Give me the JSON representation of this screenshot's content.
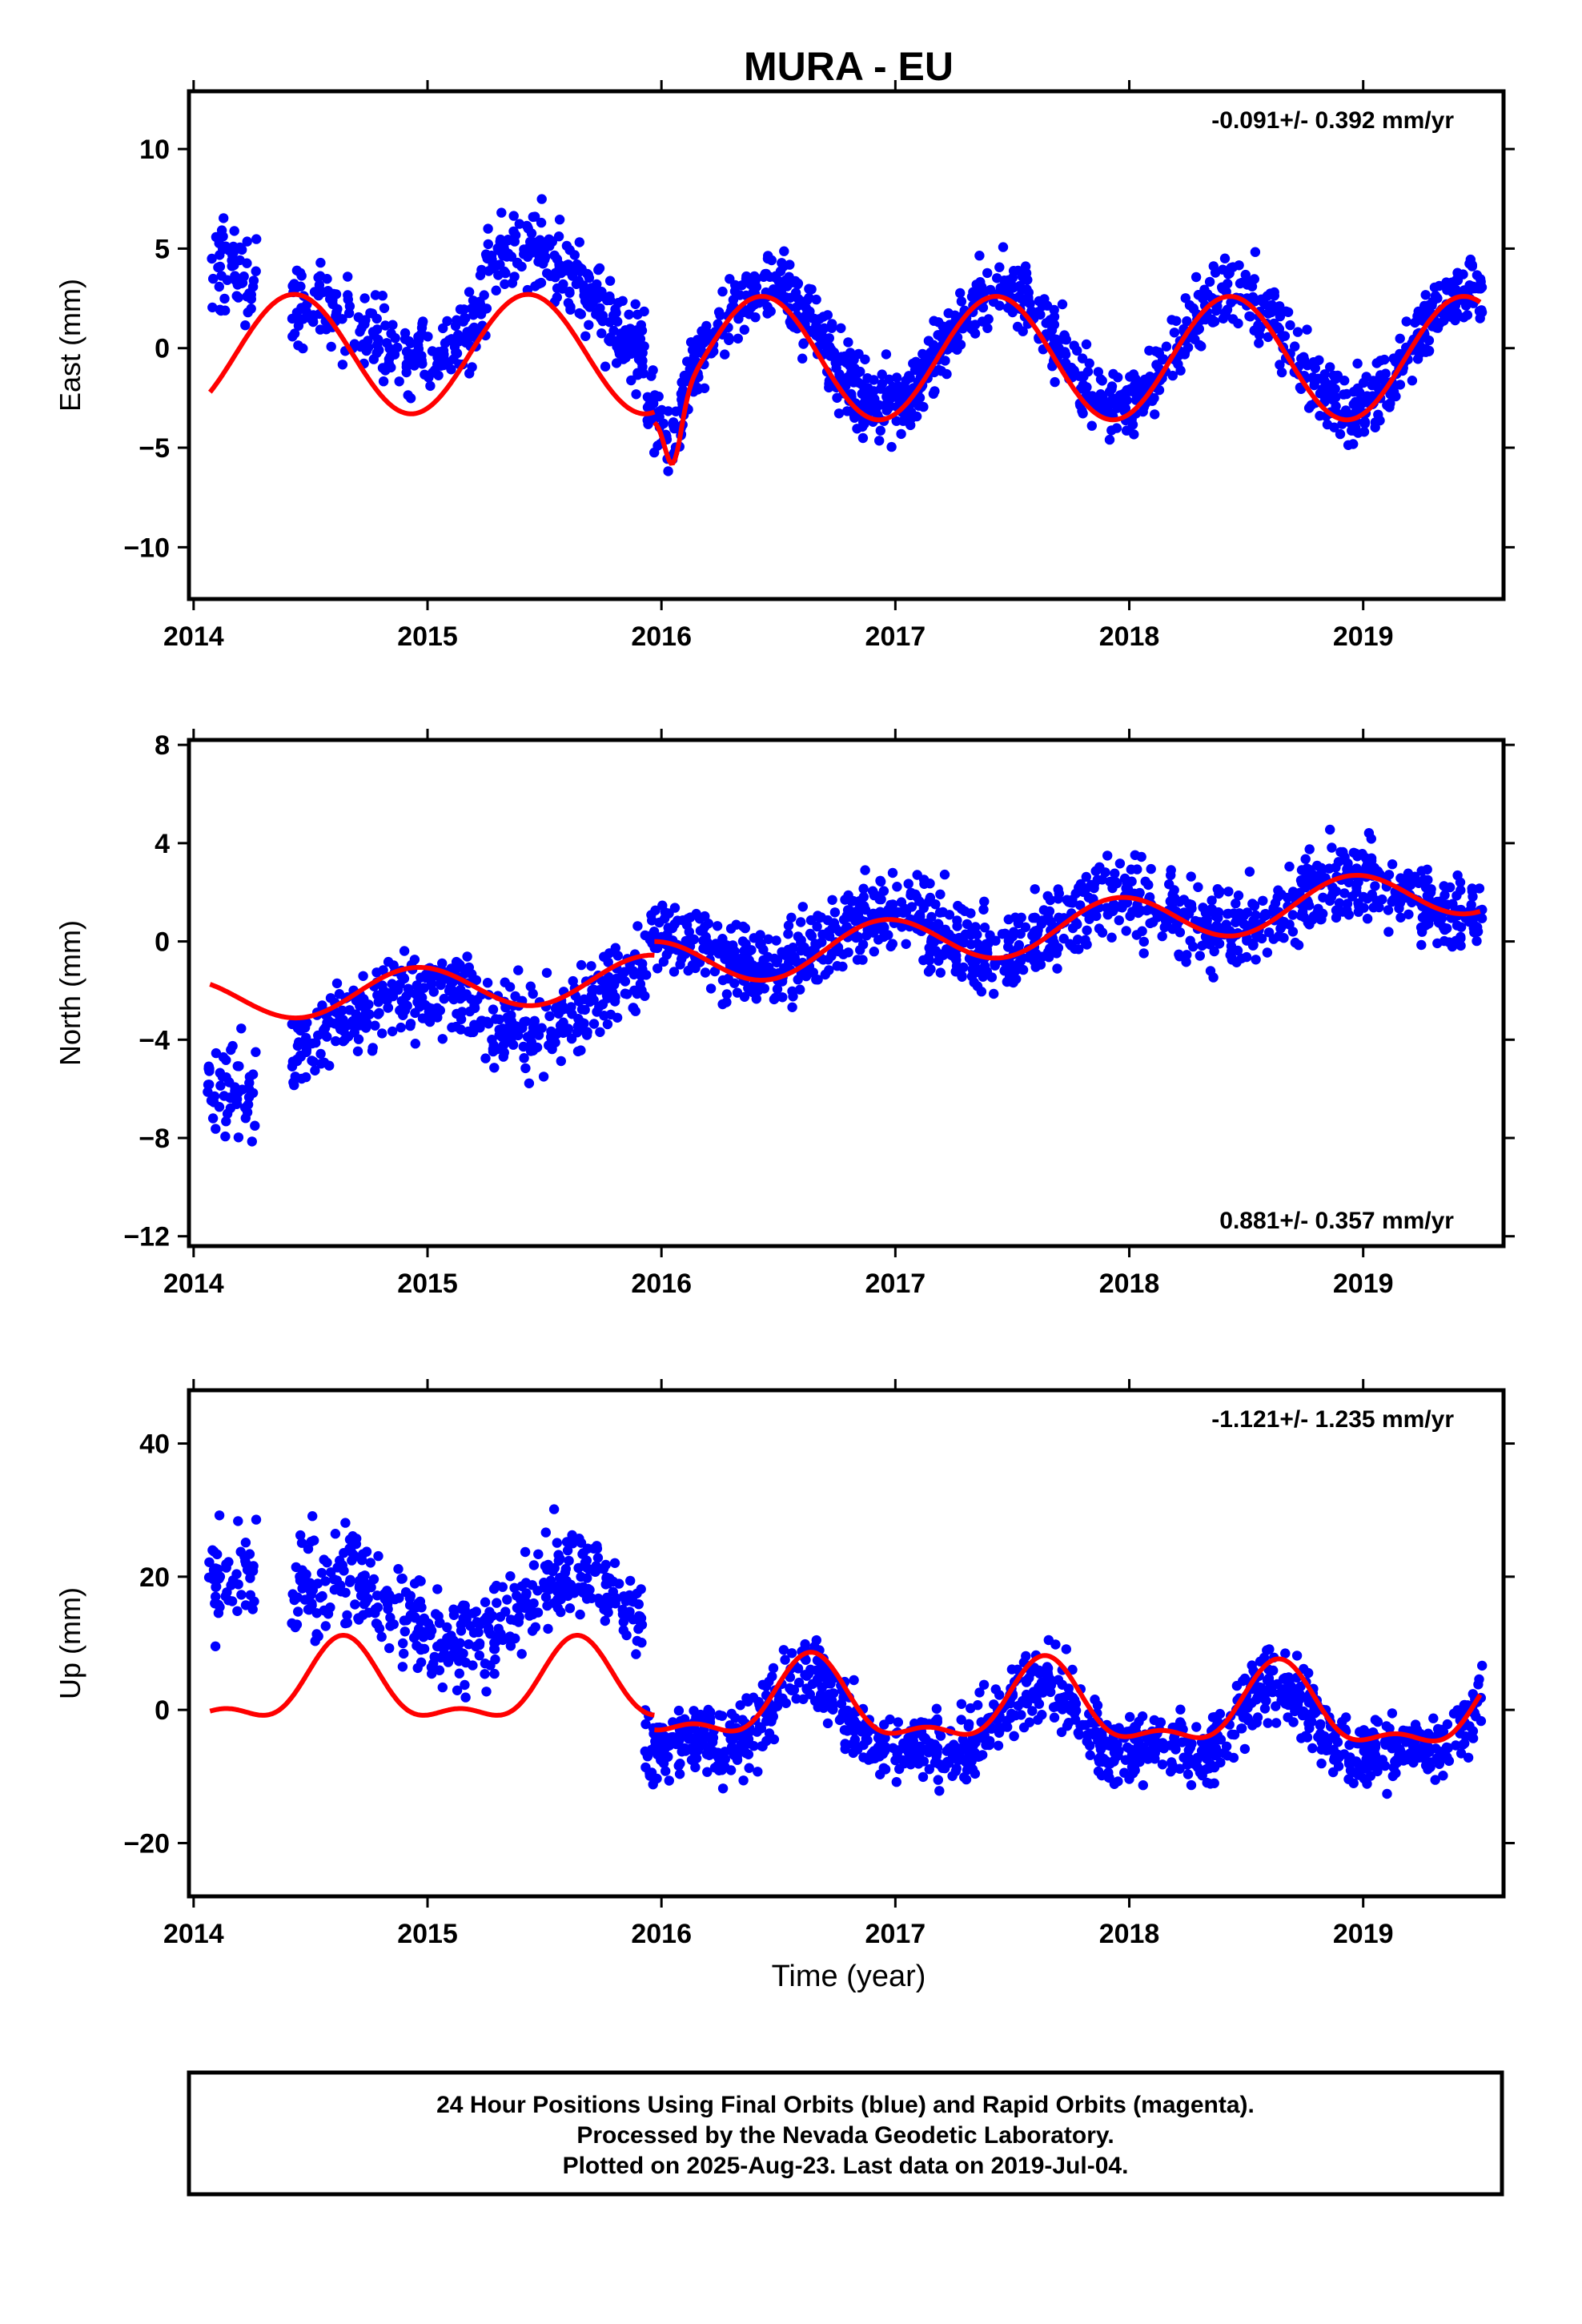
{
  "title": "MURA - EU",
  "xlabel": "Time (year)",
  "footer": {
    "line1": "24 Hour Positions Using Final Orbits (blue) and Rapid Orbits (magenta).",
    "line2": "Processed by the Nevada Geodetic Laboratory.",
    "line3": "Plotted on 2025-Aug-23. Last data on 2019-Jul-04."
  },
  "colors": {
    "points": "#0000ff",
    "fit": "#ff0000",
    "axes": "#000000",
    "background": "#ffffff"
  },
  "chart_data": [
    {
      "type": "scatter",
      "panel": "east",
      "ylabel": "East (mm)",
      "rate_text": "-0.091+/- 0.392 mm/yr",
      "rate_position": "top-right",
      "xlim": [
        2013.98,
        2019.6
      ],
      "ylim": [
        -12.6,
        12.9
      ],
      "xticks": [
        2014,
        2015,
        2016,
        2017,
        2018,
        2019
      ],
      "yticks": [
        -10,
        -5,
        0,
        5,
        10
      ],
      "grid": false,
      "series": [
        {
          "style": "points",
          "segments": [
            {
              "x_start": 2014.06,
              "x_end": 2014.27,
              "level": 3.8,
              "trend": 0,
              "amp": 0,
              "amp2": 0,
              "phase_peak": 0.45,
              "jump_peak": 0,
              "noise": 2.2,
              "count": 55
            },
            {
              "x_start": 2014.42,
              "x_end": 2015.25,
              "level": 0.9,
              "trend": 0.5,
              "amp": 1.4,
              "amp2": 0,
              "phase_peak": 0.45,
              "jump_peak": 0,
              "noise": 1.9,
              "count": 210
            },
            {
              "x_start": 2015.25,
              "x_end": 2015.93,
              "level": 3.6,
              "trend": -2.5,
              "amp": 1.8,
              "amp2": 0,
              "phase_peak": 0.45,
              "jump_peak": 0,
              "noise": 1.9,
              "count": 220
            },
            {
              "x_start": 2015.93,
              "x_end": 2019.51,
              "level": 0.1,
              "trend": -0.05,
              "amp": 2.9,
              "amp2": 0,
              "phase_peak": 0.45,
              "jump_peak": 2016.04,
              "noise": 1.6,
              "count": 1150
            }
          ]
        },
        {
          "style": "fit",
          "segments": [
            {
              "x_start": 2014.07,
              "x_end": 2015.97,
              "level": -0.3,
              "trend": 0,
              "amp": 3.0,
              "amp2": 0,
              "phase_peak": 0.43,
              "jump_peak": 0
            },
            {
              "x_start": 2015.97,
              "x_end": 2019.5,
              "level": -0.5,
              "trend": 0,
              "amp": 3.1,
              "amp2": 0,
              "phase_peak": 0.43,
              "jump_peak": 2016.05
            }
          ]
        }
      ]
    },
    {
      "type": "scatter",
      "panel": "north",
      "ylabel": "North (mm)",
      "rate_text": "0.881+/- 0.357 mm/yr",
      "rate_position": "bottom-right",
      "xlim": [
        2013.98,
        2019.6
      ],
      "ylim": [
        -12.4,
        8.2
      ],
      "xticks": [
        2014,
        2015,
        2016,
        2017,
        2018,
        2019
      ],
      "yticks": [
        -12,
        -8,
        -4,
        0,
        4,
        8
      ],
      "grid": false,
      "series": [
        {
          "style": "points",
          "segments": [
            {
              "x_start": 2014.06,
              "x_end": 2014.27,
              "level": -6.0,
              "trend": 0,
              "amp": 0,
              "amp2": 0,
              "phase_peak": 0.95,
              "jump_peak": 0,
              "noise": 1.6,
              "count": 55
            },
            {
              "x_start": 2014.42,
              "x_end": 2015.93,
              "level": -3.2,
              "trend": 0.6,
              "amp": 1.0,
              "amp2": 0,
              "phase_peak": 0.95,
              "jump_peak": 0,
              "noise": 1.6,
              "count": 430
            },
            {
              "x_start": 2015.93,
              "x_end": 2019.51,
              "level": -0.6,
              "trend": 0.75,
              "amp": 0.9,
              "amp2": 0,
              "phase_peak": 0.95,
              "jump_peak": 0,
              "noise": 1.5,
              "count": 1150
            }
          ]
        },
        {
          "style": "fit",
          "segments": [
            {
              "x_start": 2014.07,
              "x_end": 2015.97,
              "level": -2.4,
              "trend": 0.5,
              "amp": 0.9,
              "amp2": 0,
              "phase_peak": 0.95,
              "jump_peak": 0
            },
            {
              "x_start": 2015.97,
              "x_end": 2019.5,
              "level": -1.0,
              "trend": 0.9,
              "amp": 1.0,
              "amp2": 0,
              "phase_peak": 0.95,
              "jump_peak": 0
            }
          ]
        }
      ]
    },
    {
      "type": "scatter",
      "panel": "up",
      "ylabel": "Up (mm)",
      "rate_text": "-1.121+/- 1.235 mm/yr",
      "rate_position": "top-right",
      "xlim": [
        2013.98,
        2019.6
      ],
      "ylim": [
        -28.0,
        48.0
      ],
      "xticks": [
        2014,
        2015,
        2016,
        2017,
        2018,
        2019
      ],
      "yticks": [
        -20,
        0,
        20,
        40
      ],
      "grid": false,
      "series": [
        {
          "style": "points",
          "segments": [
            {
              "x_start": 2014.06,
              "x_end": 2014.27,
              "level": 20.0,
              "trend": 0,
              "amp": 0,
              "amp2": 0,
              "phase_peak": 0.62,
              "jump_peak": 0,
              "noise": 7.0,
              "count": 55
            },
            {
              "x_start": 2014.42,
              "x_end": 2015.93,
              "level": 15.0,
              "trend": 0,
              "amp": 5.0,
              "amp2": 0,
              "phase_peak": 0.62,
              "jump_peak": 0,
              "noise": 6.5,
              "count": 430
            },
            {
              "x_start": 2015.93,
              "x_end": 2019.51,
              "level": -1.5,
              "trend": -0.5,
              "amp": 5.0,
              "amp2": 2.0,
              "phase_peak": 0.62,
              "jump_peak": 0,
              "noise": 5.0,
              "count": 1150
            }
          ]
        },
        {
          "style": "fit",
          "segments": [
            {
              "x_start": 2014.07,
              "x_end": 2015.97,
              "level": 3.2,
              "trend": 0,
              "amp": 5.5,
              "amp2": 2.5,
              "phase_peak": 0.64,
              "jump_peak": 0
            },
            {
              "x_start": 2015.97,
              "x_end": 2019.5,
              "level": 1.0,
              "trend": -0.5,
              "amp": 5.5,
              "amp2": 2.5,
              "phase_peak": 0.64,
              "jump_peak": 0
            }
          ]
        }
      ]
    }
  ]
}
